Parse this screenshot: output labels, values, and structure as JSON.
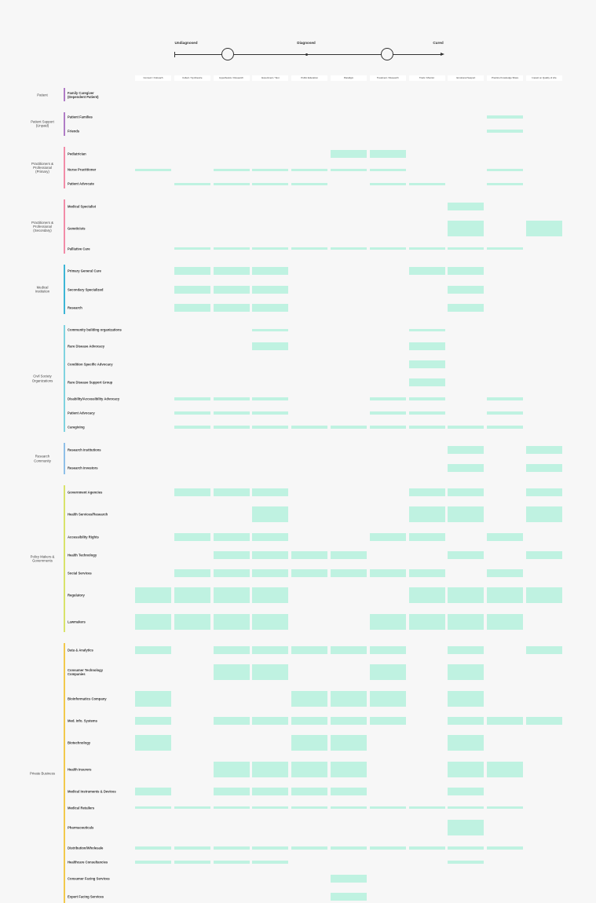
{
  "timeline": {
    "stages": [
      "Undiagnosed",
      "Diagnosed",
      "Cured"
    ]
  },
  "columns": [
    "Connect / Outreach",
    "Collect / Synthesize",
    "Hypothesize / Research",
    "Experiment / Test",
    "Public Education",
    "Paradigm",
    "Treatment / Research",
    "Track / Monitor",
    "Emotional Support",
    "Practice Knowledge Share",
    "Impact on Quality of Life"
  ],
  "groups": [
    {
      "label": "Patient",
      "color": "#b07cc6",
      "rows": [
        {
          "label": "Family Caregiver\n(Dependent Patient)",
          "cells": []
        }
      ]
    },
    {
      "label": "Patient Support\n(Unpaid)",
      "color": "#b07cc6",
      "rows": [
        {
          "label": "Patient Families",
          "cells": [
            [
              9,
              1
            ]
          ]
        },
        {
          "label": "Friends",
          "cells": [
            [
              9,
              1
            ]
          ]
        }
      ]
    },
    {
      "label": "Practitioners &\nProfessional\n(Primary)",
      "color": "#f28ca8",
      "rows": [
        {
          "label": "Pediatrician",
          "cells": [
            [
              5,
              3
            ],
            [
              6,
              3
            ]
          ]
        },
        {
          "label": "Nurse Practitioner",
          "cells": [
            [
              0,
              1
            ],
            [
              2,
              1
            ],
            [
              3,
              1
            ],
            [
              4,
              1
            ],
            [
              5,
              1
            ],
            [
              6,
              1
            ],
            [
              9,
              1
            ]
          ]
        },
        {
          "label": "Patient Advocate",
          "cells": [
            [
              1,
              1
            ],
            [
              2,
              1
            ],
            [
              3,
              1
            ],
            [
              4,
              1
            ],
            [
              6,
              1
            ],
            [
              7,
              1
            ],
            [
              9,
              1
            ]
          ]
        }
      ]
    },
    {
      "label": "Practitioners &\nProfessional\n(Secondary)",
      "color": "#f28ca8",
      "rows": [
        {
          "label": "Medical Specialist",
          "cells": [
            [
              8,
              3
            ]
          ]
        },
        {
          "label": "Geneticists",
          "cells": [
            [
              8,
              6
            ],
            [
              10,
              6
            ]
          ]
        },
        {
          "label": "Palliative Care",
          "cells": [
            [
              1,
              1
            ],
            [
              2,
              1
            ],
            [
              3,
              1
            ],
            [
              4,
              1
            ],
            [
              5,
              1
            ],
            [
              6,
              1
            ],
            [
              7,
              1
            ],
            [
              8,
              1
            ],
            [
              9,
              1
            ]
          ]
        }
      ]
    },
    {
      "label": "Medical\nInstitution",
      "color": "#3cb6d6",
      "rows": [
        {
          "label": "Primary General Care",
          "cells": [
            [
              1,
              3
            ],
            [
              2,
              3
            ],
            [
              3,
              3
            ],
            [
              7,
              3
            ],
            [
              8,
              3
            ]
          ]
        },
        {
          "label": "Secondary Specialized",
          "cells": [
            [
              1,
              3
            ],
            [
              2,
              3
            ],
            [
              3,
              3
            ],
            [
              8,
              3
            ]
          ]
        },
        {
          "label": "Research",
          "cells": [
            [
              1,
              3
            ],
            [
              2,
              3
            ],
            [
              3,
              3
            ],
            [
              8,
              3
            ]
          ]
        }
      ]
    },
    {
      "label": "Civil Society\nOrganizations",
      "color": "#7fd3e0",
      "rows": [
        {
          "label": "Community building organizations",
          "cells": [
            [
              3,
              1
            ],
            [
              7,
              1
            ]
          ]
        },
        {
          "label": "Rare Disease Advocacy",
          "cells": [
            [
              3,
              3
            ],
            [
              7,
              3
            ]
          ]
        },
        {
          "label": "Condition Specific Advocacy",
          "cells": [
            [
              7,
              3
            ]
          ]
        },
        {
          "label": "Rare Disease Support Group",
          "cells": [
            [
              7,
              3
            ]
          ]
        },
        {
          "label": "Disability/Accessibility Advocacy",
          "cells": [
            [
              1,
              1
            ],
            [
              2,
              1
            ],
            [
              3,
              1
            ],
            [
              6,
              1
            ],
            [
              7,
              1
            ],
            [
              9,
              1
            ]
          ]
        },
        {
          "label": "Patient Advocacy",
          "cells": [
            [
              1,
              1
            ],
            [
              2,
              1
            ],
            [
              3,
              1
            ],
            [
              6,
              1
            ],
            [
              7,
              1
            ],
            [
              9,
              1
            ]
          ]
        },
        {
          "label": "Caregiving",
          "cells": [
            [
              1,
              1
            ],
            [
              2,
              1
            ],
            [
              3,
              1
            ],
            [
              4,
              1
            ],
            [
              5,
              1
            ],
            [
              6,
              1
            ],
            [
              7,
              1
            ],
            [
              8,
              1
            ],
            [
              9,
              1
            ]
          ]
        }
      ]
    },
    {
      "label": "Research\nCommunity",
      "color": "#8fc0e8",
      "rows": [
        {
          "label": "Research Institutions",
          "cells": [
            [
              8,
              3
            ],
            [
              10,
              3
            ]
          ]
        },
        {
          "label": "Research Investors",
          "cells": [
            [
              8,
              3
            ],
            [
              10,
              3
            ]
          ]
        }
      ]
    },
    {
      "label": "Policy Makers &\nGovernments",
      "color": "#d9e36a",
      "rows": [
        {
          "label": "Government Agencies",
          "cells": [
            [
              1,
              3
            ],
            [
              2,
              3
            ],
            [
              3,
              3
            ],
            [
              7,
              3
            ],
            [
              8,
              3
            ],
            [
              10,
              3
            ]
          ]
        },
        {
          "label": "Health Services/Research",
          "cells": [
            [
              3,
              6
            ],
            [
              7,
              6
            ],
            [
              8,
              6
            ],
            [
              10,
              6
            ]
          ]
        },
        {
          "label": "Accessibility Rights",
          "cells": [
            [
              1,
              3
            ],
            [
              2,
              3
            ],
            [
              3,
              3
            ],
            [
              6,
              3
            ],
            [
              7,
              3
            ],
            [
              9,
              3
            ]
          ]
        },
        {
          "label": "Health Technology",
          "cells": [
            [
              2,
              3
            ],
            [
              3,
              3
            ],
            [
              4,
              3
            ],
            [
              5,
              3
            ],
            [
              8,
              3
            ],
            [
              10,
              3
            ]
          ]
        },
        {
          "label": "Social Services",
          "cells": [
            [
              1,
              3
            ],
            [
              2,
              3
            ],
            [
              3,
              3
            ],
            [
              4,
              3
            ],
            [
              5,
              3
            ],
            [
              6,
              3
            ],
            [
              7,
              3
            ],
            [
              9,
              3
            ]
          ]
        },
        {
          "label": "Regulatory",
          "cells": [
            [
              0,
              6
            ],
            [
              1,
              6
            ],
            [
              2,
              6
            ],
            [
              3,
              6
            ],
            [
              7,
              6
            ],
            [
              8,
              6
            ],
            [
              9,
              6
            ],
            [
              10,
              6
            ]
          ]
        },
        {
          "label": "Lawmakers",
          "cells": [
            [
              0,
              6
            ],
            [
              1,
              6
            ],
            [
              2,
              6
            ],
            [
              3,
              6
            ],
            [
              6,
              6
            ],
            [
              7,
              6
            ],
            [
              8,
              6
            ],
            [
              9,
              6
            ]
          ]
        }
      ]
    },
    {
      "label": "Private Business",
      "color": "#f2c94c",
      "rows": [
        {
          "label": "Data & Analytics",
          "cells": [
            [
              0,
              3
            ],
            [
              2,
              3
            ],
            [
              3,
              3
            ],
            [
              4,
              3
            ],
            [
              5,
              3
            ],
            [
              6,
              3
            ],
            [
              8,
              3
            ],
            [
              10,
              3
            ]
          ]
        },
        {
          "label": "Consumer Technology\nCompanies",
          "cells": [
            [
              2,
              6
            ],
            [
              3,
              6
            ],
            [
              6,
              6
            ],
            [
              8,
              6
            ]
          ]
        },
        {
          "label": "Bioinformatics Company",
          "cells": [
            [
              0,
              6
            ],
            [
              4,
              6
            ],
            [
              5,
              6
            ],
            [
              6,
              6
            ],
            [
              8,
              6
            ]
          ]
        },
        {
          "label": "Med. Info. Systems",
          "cells": [
            [
              0,
              3
            ],
            [
              2,
              3
            ],
            [
              3,
              3
            ],
            [
              4,
              3
            ],
            [
              5,
              3
            ],
            [
              6,
              3
            ],
            [
              8,
              3
            ],
            [
              9,
              3
            ],
            [
              10,
              3
            ]
          ]
        },
        {
          "label": "Biotechnology",
          "cells": [
            [
              0,
              6
            ],
            [
              4,
              6
            ],
            [
              5,
              6
            ],
            [
              8,
              6
            ]
          ]
        },
        {
          "label": "Health Insurers",
          "cells": [
            [
              2,
              6
            ],
            [
              3,
              6
            ],
            [
              4,
              6
            ],
            [
              5,
              6
            ],
            [
              8,
              6
            ],
            [
              9,
              6
            ]
          ]
        },
        {
          "label": "Medical Instruments & Devices",
          "cells": [
            [
              0,
              3
            ],
            [
              2,
              3
            ],
            [
              3,
              3
            ],
            [
              4,
              3
            ],
            [
              5,
              3
            ],
            [
              8,
              3
            ]
          ]
        },
        {
          "label": "Medical Retailers",
          "cells": [
            [
              0,
              1
            ],
            [
              1,
              1
            ],
            [
              2,
              1
            ],
            [
              3,
              1
            ],
            [
              4,
              1
            ],
            [
              5,
              1
            ],
            [
              6,
              1
            ],
            [
              7,
              1
            ],
            [
              8,
              1
            ],
            [
              9,
              1
            ]
          ]
        },
        {
          "label": "Pharmaceuticals",
          "cells": [
            [
              8,
              6
            ]
          ]
        },
        {
          "label": "Distribution/Wholesale",
          "cells": [
            [
              0,
              1
            ],
            [
              1,
              1
            ],
            [
              2,
              1
            ],
            [
              3,
              1
            ],
            [
              4,
              1
            ],
            [
              5,
              1
            ],
            [
              6,
              1
            ],
            [
              7,
              1
            ],
            [
              8,
              1
            ],
            [
              9,
              1
            ]
          ]
        },
        {
          "label": "Healthcare Consultancies",
          "cells": [
            [
              0,
              1
            ],
            [
              1,
              1
            ],
            [
              2,
              1
            ],
            [
              3,
              1
            ],
            [
              8,
              1
            ]
          ]
        },
        {
          "label": "Consumer Facing Services",
          "cells": [
            [
              5,
              3
            ]
          ]
        },
        {
          "label": "Expert Facing Services",
          "cells": [
            [
              5,
              3
            ]
          ]
        }
      ]
    }
  ]
}
